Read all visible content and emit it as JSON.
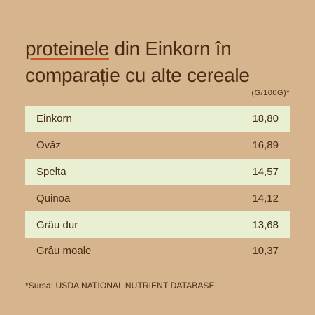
{
  "title": {
    "highlight": "proteinele",
    "rest_line1": " din Einkorn în",
    "line2": "comparație cu alte cereale"
  },
  "unit": "(G/100G)*",
  "chart_data": {
    "type": "table",
    "categories": [
      "Einkorn",
      "Ovăz",
      "Spelta",
      "Quinoa",
      "Grâu dur",
      "Grâu moale"
    ],
    "value_labels": [
      "18,80",
      "16,89",
      "14,57",
      "14,12",
      "13,68",
      "10,37"
    ],
    "values": [
      18.8,
      16.89,
      14.57,
      14.12,
      13.68,
      10.37
    ]
  },
  "source": "*Sursa: USDA NATIONAL NUTRIENT DATABASE",
  "colors": {
    "background": "#d5b48e",
    "row_highlight": "#e8efd2",
    "text": "#4a2c14",
    "underline_accent": "#c9581e"
  }
}
